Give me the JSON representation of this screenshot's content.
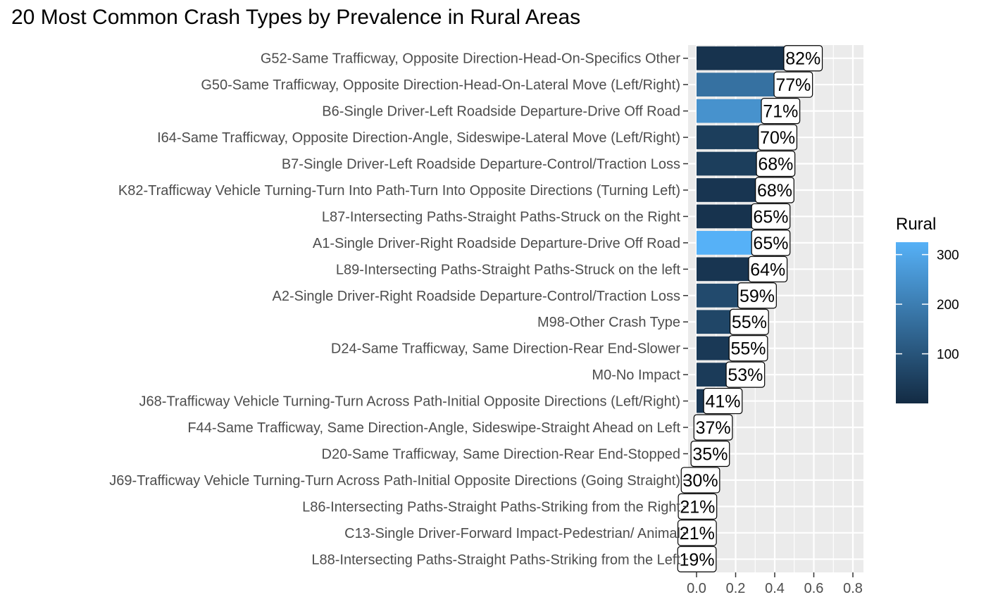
{
  "chart_data": {
    "type": "bar",
    "orientation": "horizontal",
    "title": "20 Most Common Crash Types by Prevalence in Rural Areas",
    "xlabel": "",
    "ylabel": "",
    "xlim": [
      0,
      0.8
    ],
    "x_ticks": [
      0.0,
      0.2,
      0.4,
      0.6,
      0.8
    ],
    "x_tick_labels": [
      "0.0",
      "0.2",
      "0.4",
      "0.6",
      "0.8"
    ],
    "grid": true,
    "categories": [
      "G52-Same Trafficway, Opposite Direction-Head-On-Specifics Other",
      "G50-Same Trafficway, Opposite Direction-Head-On-Lateral Move (Left/Right)",
      "B6-Single Driver-Left Roadside Departure-Drive Off Road",
      "I64-Same Trafficway, Opposite Direction-Angle, Sideswipe-Lateral Move (Left/Right)",
      "B7-Single Driver-Left Roadside Departure-Control/Traction Loss",
      "K82-Trafficway Vehicle Turning-Turn Into Path-Turn Into Opposite Directions (Turning Left)",
      "L87-Intersecting Paths-Straight Paths-Struck on the Right",
      "A1-Single Driver-Right Roadside Departure-Drive Off Road",
      "L89-Intersecting Paths-Straight Paths-Struck on the left",
      "A2-Single Driver-Right Roadside Departure-Control/Traction Loss",
      "M98-Other Crash Type",
      "D24-Same Trafficway, Same Direction-Rear End-Slower",
      "M0-No Impact",
      "J68-Trafficway Vehicle Turning-Turn Across Path-Initial Opposite Directions (Left/Right)",
      "F44-Same Trafficway, Same Direction-Angle, Sideswipe-Straight Ahead on Left",
      "D20-Same Trafficway, Same Direction-Rear End-Stopped",
      "J69-Trafficway Vehicle Turning-Turn Across Path-Initial Opposite Directions (Going Straight)",
      "L86-Intersecting Paths-Straight Paths-Striking from the Right",
      "C13-Single Driver-Forward Impact-Pedestrian/ Animal",
      "L88-Intersecting Paths-Straight Paths-Striking from the Left"
    ],
    "values": [
      0.545,
      0.495,
      0.43,
      0.415,
      0.405,
      0.4,
      0.38,
      0.38,
      0.365,
      0.31,
      0.27,
      0.265,
      0.25,
      0.135,
      0.085,
      0.07,
      0.02,
      0.005,
      0.003,
      0.002
    ],
    "data_labels": [
      "82%",
      "77%",
      "71%",
      "70%",
      "68%",
      "68%",
      "65%",
      "65%",
      "64%",
      "59%",
      "55%",
      "55%",
      "53%",
      "41%",
      "37%",
      "35%",
      "30%",
      "21%",
      "21%",
      "19%"
    ],
    "fill_values": [
      20,
      170,
      250,
      45,
      45,
      25,
      20,
      330,
      25,
      75,
      65,
      35,
      40,
      30,
      15,
      10,
      5,
      3,
      2,
      2
    ],
    "legend": {
      "title": "Rural",
      "placement": "right",
      "ticks": [
        100,
        200,
        300
      ],
      "tick_labels": [
        "100",
        "200",
        "300"
      ],
      "range": [
        0,
        325
      ],
      "color_low": "#132b43",
      "color_high": "#56b1f7"
    },
    "colors": {
      "panel_background": "#ebebeb",
      "gridline": "#ffffff",
      "tick_text": "#4d4d4d"
    }
  }
}
